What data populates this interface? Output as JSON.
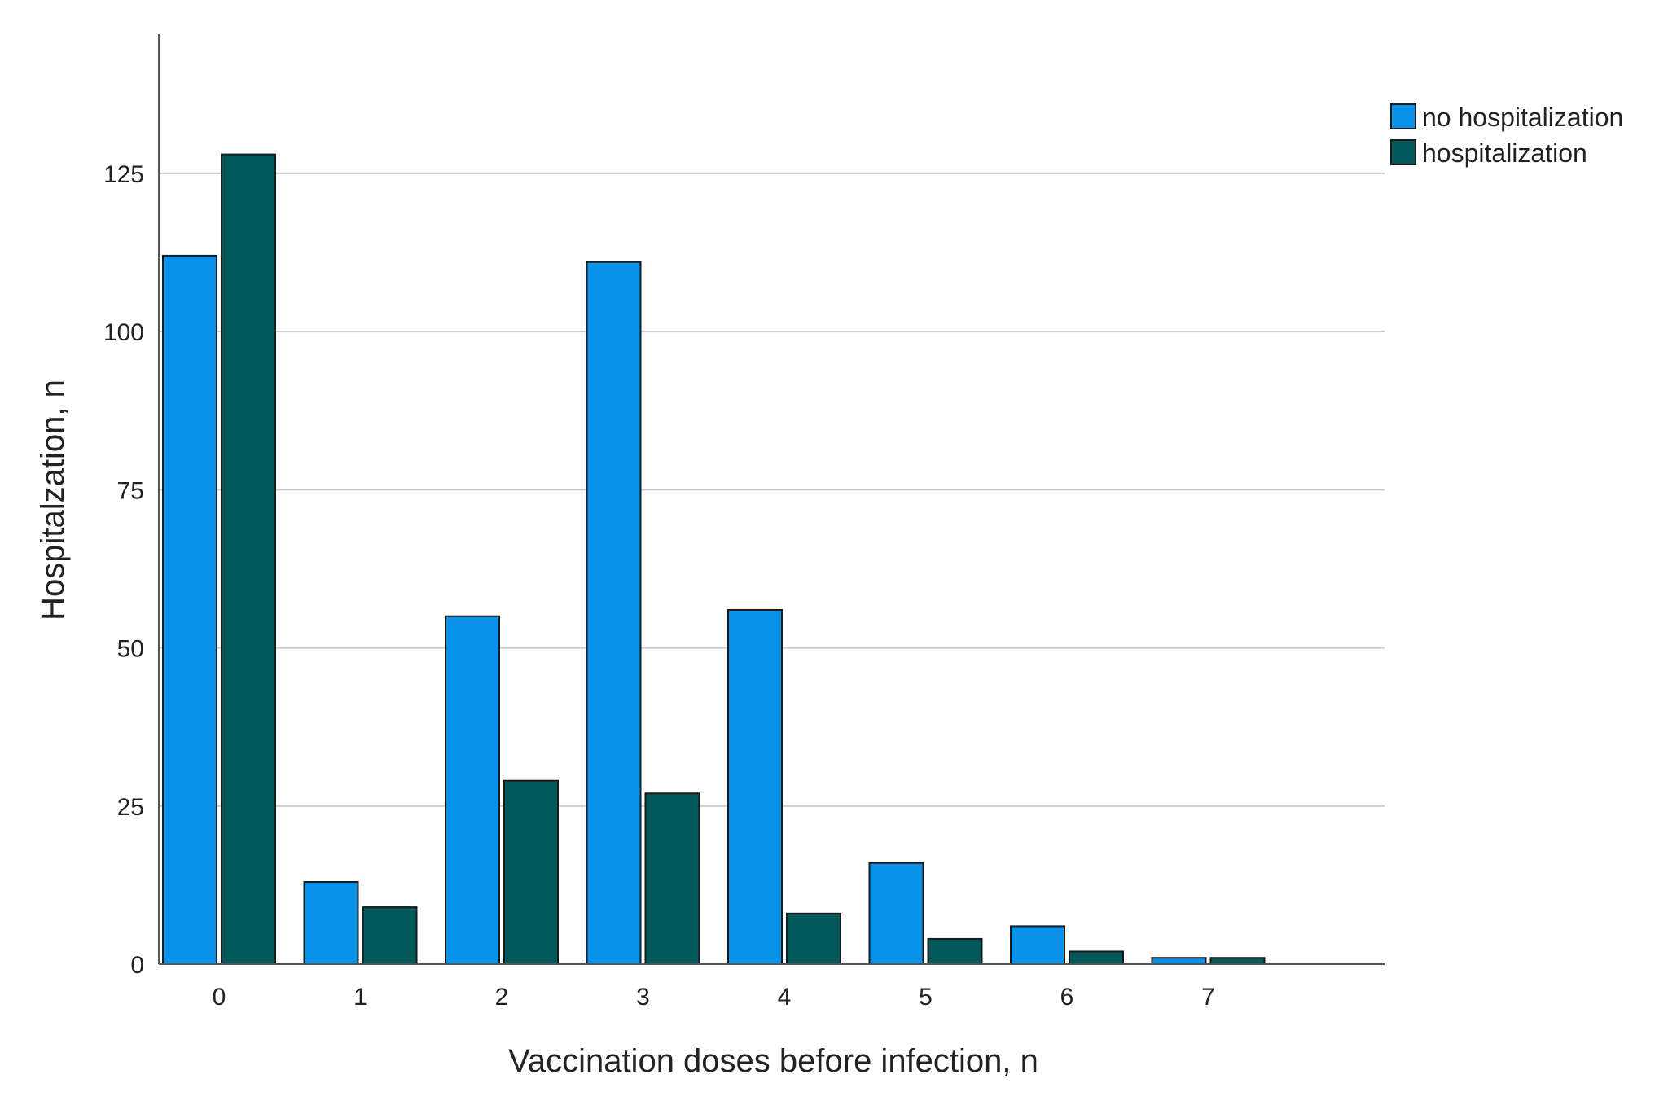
{
  "chart_data": {
    "type": "bar",
    "title": "",
    "xlabel": "Vaccination doses before infection, n",
    "ylabel": "Hospitalzation, n",
    "categories": [
      "0",
      "1",
      "2",
      "3",
      "4",
      "5",
      "6",
      "7"
    ],
    "series": [
      {
        "name": "no hospitalization",
        "color": "#0A91E8",
        "values": [
          112,
          13,
          55,
          111,
          56,
          16,
          6,
          1
        ]
      },
      {
        "name": "hospitalization",
        "color": "#03585A",
        "values": [
          128,
          9,
          29,
          27,
          8,
          4,
          2,
          1
        ]
      }
    ],
    "ylim": [
      0,
      147
    ],
    "yticks": [
      0,
      25,
      50,
      75,
      100,
      125
    ],
    "grid": true,
    "legend_position": "top-right"
  }
}
